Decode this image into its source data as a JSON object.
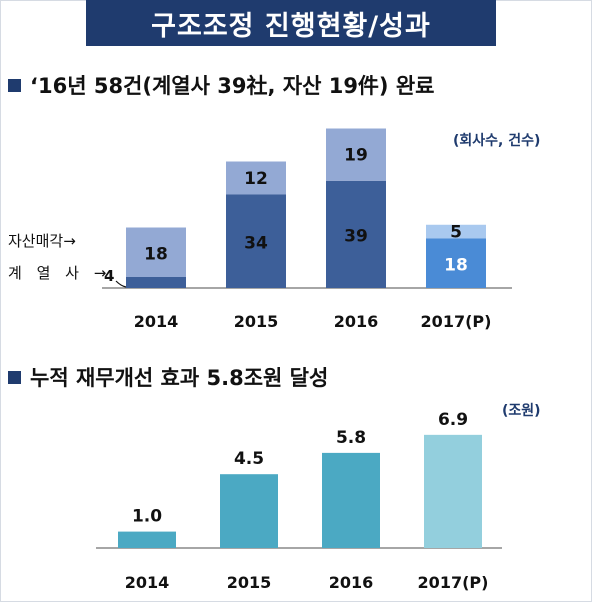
{
  "header": {
    "title": "구조조정 진행현황/성과"
  },
  "section1": {
    "heading": "‘16년 58건(계열사 39社, 자산 19件) 완료",
    "unit": "(회사수, 건수)",
    "side_labels": {
      "asset": "자산매각→",
      "affiliate": "계 열 사 →"
    }
  },
  "section2": {
    "heading": "누적 재무개선 효과 5.8조원 달성",
    "unit": "(조원)"
  },
  "colors": {
    "title_bg": "#1f3b6e",
    "affiliate_bar": "#3d5f99",
    "asset_bar": "#93a9d4",
    "projected_affiliate_bar": "#4a8bd6",
    "projected_asset_bar": "#a9c9ef",
    "improvement_bar": "#4ba9c3",
    "projected_improvement_bar": "#93cfdd"
  },
  "chart_data": [
    {
      "type": "bar",
      "stacked": true,
      "categories": [
        "2014",
        "2015",
        "2016",
        "2017(P)"
      ],
      "series": [
        {
          "name": "계열사",
          "values": [
            4,
            34,
            39,
            18
          ]
        },
        {
          "name": "자산매각",
          "values": [
            18,
            12,
            19,
            5
          ]
        }
      ],
      "unit": "(회사수, 건수)",
      "ylim": [
        0,
        60
      ]
    },
    {
      "type": "bar",
      "categories": [
        "2014",
        "2015",
        "2016",
        "2017(P)"
      ],
      "values": [
        1.0,
        4.5,
        5.8,
        6.9
      ],
      "value_labels": [
        "1.0",
        "4.5",
        "5.8",
        "6.9"
      ],
      "unit": "(조원)",
      "ylim": [
        0,
        7
      ]
    }
  ]
}
